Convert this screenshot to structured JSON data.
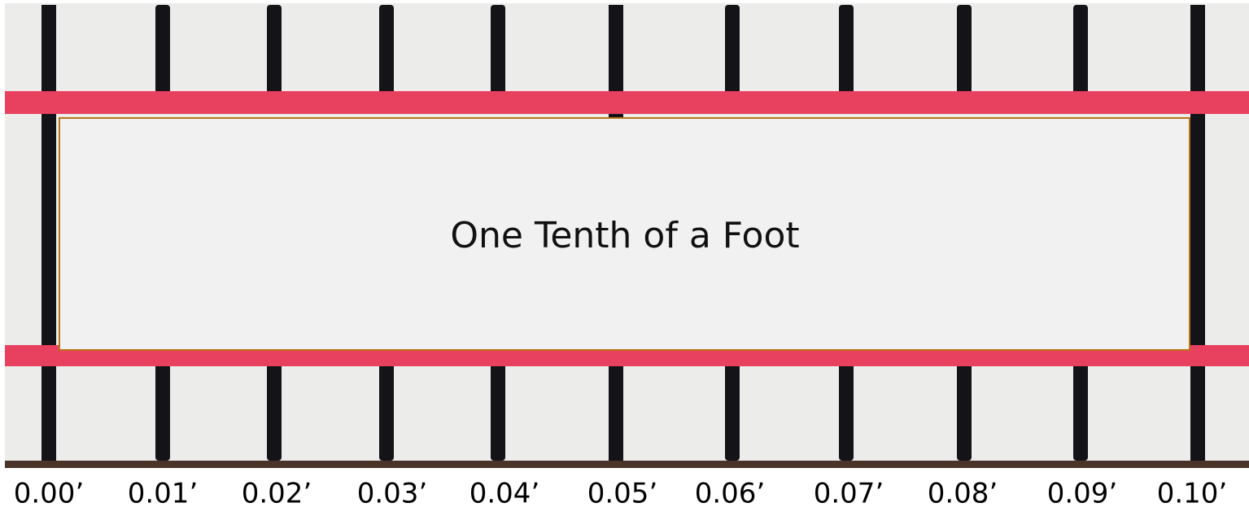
{
  "box": {
    "text": "One Tenth of a Foot"
  },
  "labels": [
    "0.00’",
    "0.01’",
    "0.02’",
    "0.03’",
    "0.04’",
    "0.05’",
    "0.06’",
    "0.07’",
    "0.08’",
    "0.09’",
    "0.10’"
  ]
}
